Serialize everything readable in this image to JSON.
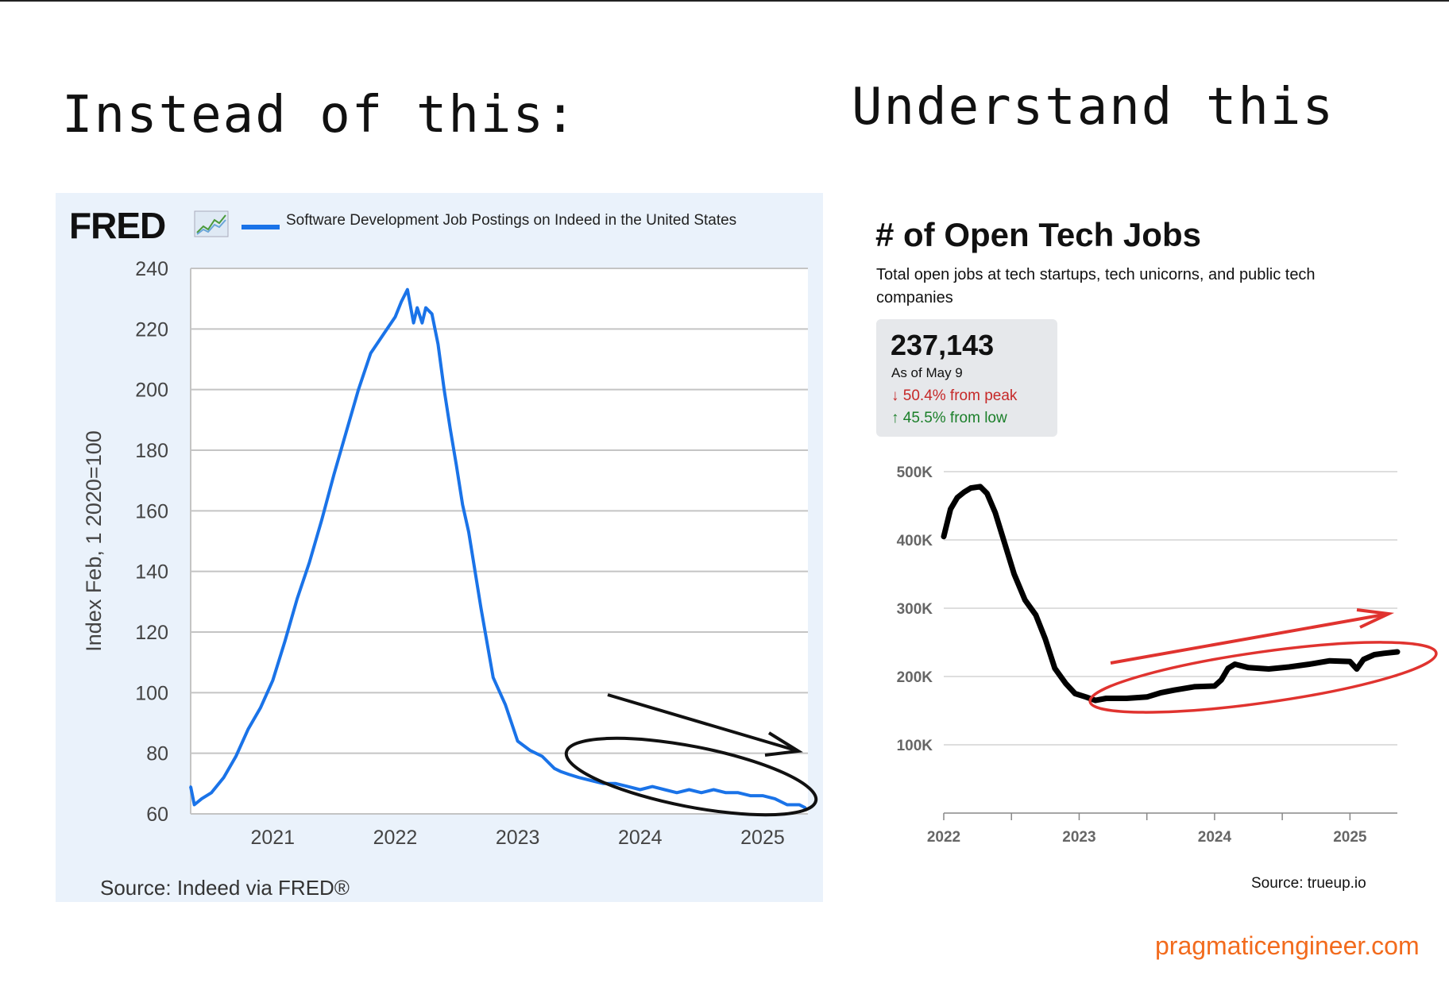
{
  "titles": {
    "left": "Instead of this:",
    "right": "Understand this"
  },
  "chart_data": [
    {
      "type": "line",
      "brand": "FRED",
      "title": "Software Development Job Postings on Indeed in the United States",
      "xlabel": "",
      "ylabel": "Index Feb, 1 2020=100",
      "xlim": [
        2020.33,
        2025.37
      ],
      "ylim": [
        60,
        240
      ],
      "yticks": [
        60,
        80,
        100,
        120,
        140,
        160,
        180,
        200,
        220,
        240
      ],
      "xticks": [
        2021,
        2022,
        2023,
        2024,
        2025
      ],
      "grid": true,
      "source": "Source: Indeed via FRED®",
      "color": "#1a73e8",
      "series": [
        {
          "name": "Software Development Job Postings on Indeed in the United States",
          "x": [
            2020.33,
            2020.36,
            2020.42,
            2020.5,
            2020.6,
            2020.7,
            2020.8,
            2020.9,
            2021.0,
            2021.1,
            2021.2,
            2021.3,
            2021.4,
            2021.5,
            2021.6,
            2021.7,
            2021.8,
            2021.9,
            2022.0,
            2022.05,
            2022.1,
            2022.15,
            2022.18,
            2022.22,
            2022.25,
            2022.3,
            2022.35,
            2022.4,
            2022.45,
            2022.5,
            2022.55,
            2022.6,
            2022.7,
            2022.8,
            2022.9,
            2023.0,
            2023.1,
            2023.2,
            2023.3,
            2023.35,
            2023.42,
            2023.5,
            2023.6,
            2023.7,
            2023.8,
            2023.9,
            2024.0,
            2024.1,
            2024.2,
            2024.3,
            2024.4,
            2024.5,
            2024.6,
            2024.7,
            2024.8,
            2024.9,
            2025.0,
            2025.1,
            2025.2,
            2025.3,
            2025.35
          ],
          "values": [
            69,
            63,
            65,
            67,
            72,
            79,
            88,
            95,
            104,
            117,
            131,
            143,
            157,
            172,
            186,
            200,
            212,
            218,
            224,
            229,
            233,
            222,
            227,
            222,
            227,
            225,
            215,
            200,
            187,
            175,
            162,
            153,
            128,
            105,
            96,
            84,
            81,
            79,
            75,
            74,
            73,
            72,
            71,
            70,
            70,
            69,
            68,
            69,
            68,
            67,
            68,
            67,
            68,
            67,
            67,
            66,
            66,
            65,
            63,
            63,
            62
          ]
        }
      ]
    },
    {
      "type": "line",
      "title": "# of Open Tech Jobs",
      "subtitle": "Total open jobs at tech startups, tech unicorns, and public tech companies",
      "stat": {
        "value": "237,143",
        "as_of": "As of May 9",
        "down": "50.4% from peak",
        "up": "45.5% from low"
      },
      "ylim": [
        0,
        500000
      ],
      "xlim": [
        2022,
        2025.35
      ],
      "ytick_labels": [
        "500K",
        "400K",
        "300K",
        "200K",
        "100K"
      ],
      "ytick_values": [
        500000,
        400000,
        300000,
        200000,
        100000
      ],
      "xtick_labels": [
        "2022",
        "2023",
        "2024",
        "2025"
      ],
      "xtick_values": [
        2022,
        2023,
        2024,
        2025
      ],
      "source": "Source: trueup.io",
      "color": "#000000",
      "series": [
        {
          "name": "# of Open Tech Jobs",
          "x": [
            2022.0,
            2022.05,
            2022.1,
            2022.15,
            2022.2,
            2022.27,
            2022.32,
            2022.38,
            2022.45,
            2022.52,
            2022.6,
            2022.68,
            2022.75,
            2022.82,
            2022.9,
            2022.97,
            2023.05,
            2023.12,
            2023.2,
            2023.35,
            2023.5,
            2023.6,
            2023.7,
            2023.85,
            2024.0,
            2024.05,
            2024.1,
            2024.15,
            2024.25,
            2024.4,
            2024.55,
            2024.7,
            2024.85,
            2025.0,
            2025.05,
            2025.1,
            2025.18,
            2025.25,
            2025.35
          ],
          "values": [
            405000,
            445000,
            462000,
            470000,
            476000,
            478000,
            468000,
            440000,
            395000,
            350000,
            312000,
            290000,
            255000,
            212000,
            190000,
            175000,
            170000,
            165000,
            168000,
            168000,
            170000,
            176000,
            180000,
            185000,
            186000,
            195000,
            212000,
            218000,
            213000,
            211000,
            214000,
            218000,
            223000,
            222000,
            211000,
            225000,
            232000,
            234000,
            236000
          ]
        }
      ]
    }
  ],
  "watermark": "pragmaticengineer.com"
}
